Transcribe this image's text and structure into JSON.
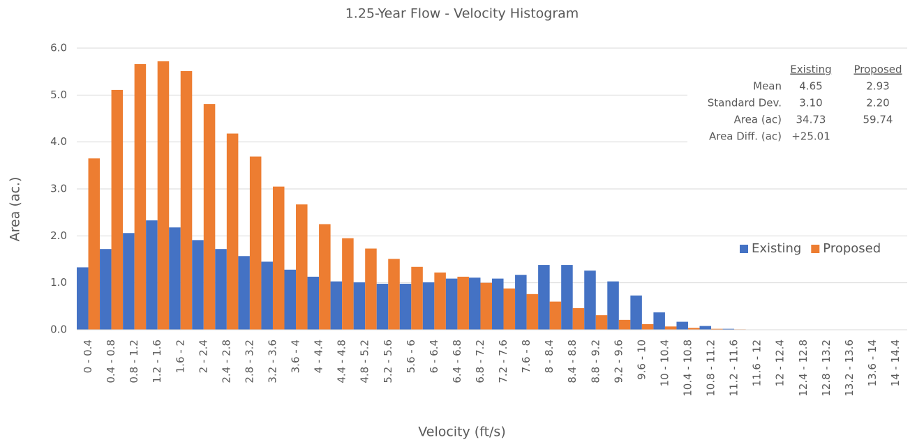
{
  "chart_data": {
    "type": "bar",
    "title": "1.25-Year Flow - Velocity Histogram",
    "x_label": "Velocity (ft/s)",
    "y_label": "Area (ac.)",
    "categories": [
      "0 - 0.4",
      "0.4 - 0.8",
      "0.8 - 1.2",
      "1.2 - 1.6",
      "1.6 - 2",
      "2 - 2.4",
      "2.4 - 2.8",
      "2.8 - 3.2",
      "3.2 - 3.6",
      "3.6 - 4",
      "4 - 4.4",
      "4.4 - 4.8",
      "4.8 - 5.2",
      "5.2 - 5.6",
      "5.6 - 6",
      "6 - 6.4",
      "6.4 - 6.8",
      "6.8 - 7.2",
      "7.2 - 7.6",
      "7.6 - 8",
      "8 - 8.4",
      "8.4 - 8.8",
      "8.8 - 9.2",
      "9.2 - 9.6",
      "9.6 - 10",
      "10 - 10.4",
      "10.4 - 10.8",
      "10.8 - 11.2",
      "11.2 - 11.6",
      "11.6 - 12",
      "12 - 12.4",
      "12.4 - 12.8",
      "12.8 - 13.2",
      "13.2 - 13.6",
      "13.6 - 14",
      "14 - 14.4"
    ],
    "series": [
      {
        "name": "Existing",
        "color": "#4472c4",
        "values": [
          1.33,
          1.72,
          2.06,
          2.33,
          2.18,
          1.91,
          1.72,
          1.57,
          1.45,
          1.28,
          1.13,
          1.03,
          1.01,
          0.98,
          0.98,
          1.01,
          1.09,
          1.11,
          1.09,
          1.17,
          1.38,
          1.38,
          1.26,
          1.03,
          0.73,
          0.37,
          0.17,
          0.08,
          0.02,
          0,
          0,
          0,
          0,
          0,
          0,
          0
        ]
      },
      {
        "name": "Proposed",
        "color": "#ed7d31",
        "values": [
          3.65,
          5.11,
          5.66,
          5.72,
          5.51,
          4.81,
          4.18,
          3.69,
          3.05,
          2.67,
          2.25,
          1.95,
          1.73,
          1.51,
          1.34,
          1.22,
          1.13,
          1.0,
          0.88,
          0.76,
          0.6,
          0.46,
          0.31,
          0.21,
          0.12,
          0.07,
          0.04,
          0.02,
          0.01,
          0,
          0,
          0,
          0,
          0,
          0,
          0
        ]
      }
    ],
    "ylim": [
      0,
      6
    ],
    "yticks": [
      {
        "value": 0,
        "label": "0.0"
      },
      {
        "value": 1,
        "label": "1.0"
      },
      {
        "value": 2,
        "label": "2.0"
      },
      {
        "value": 3,
        "label": "3.0"
      },
      {
        "value": 4,
        "label": "4.0"
      },
      {
        "value": 5,
        "label": "5.0"
      },
      {
        "value": 6,
        "label": "6.0"
      }
    ],
    "grid": true,
    "legend": "right",
    "stats_table": {
      "headers": [
        "Existing",
        "Proposed"
      ],
      "rows": [
        {
          "label": "Mean",
          "values": [
            "4.65",
            "2.93"
          ]
        },
        {
          "label": "Standard Dev.",
          "values": [
            "3.10",
            "2.20"
          ]
        },
        {
          "label": "Area (ac)",
          "values": [
            "34.73",
            "59.74"
          ]
        },
        {
          "label": "Area Diff. (ac)",
          "values": [
            "+25.01"
          ]
        }
      ]
    }
  }
}
